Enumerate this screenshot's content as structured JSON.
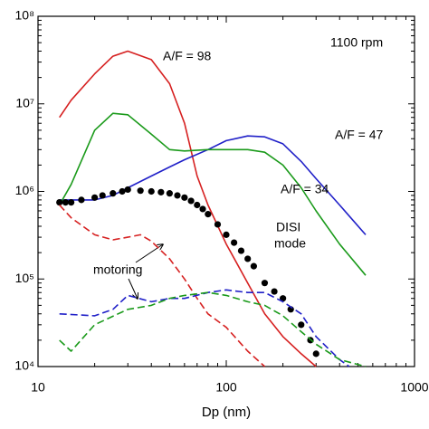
{
  "chart_data": {
    "type": "line",
    "x_label": "Dp (nm)",
    "xlim": [
      10,
      1000
    ],
    "xticks": [
      10,
      100,
      1000
    ],
    "ylim": [
      10000,
      100000000
    ],
    "yticks": [
      {
        "value": 10000,
        "label": "10⁴"
      },
      {
        "value": 100000,
        "label": "10⁵"
      },
      {
        "value": 1000000,
        "label": "10⁶"
      },
      {
        "value": 10000000,
        "label": "10⁷"
      },
      {
        "value": 100000000,
        "label": "10⁸"
      }
    ],
    "xscale": "log",
    "yscale": "log",
    "annotations": [
      "1100 rpm",
      "DISI",
      "mode",
      "motoring"
    ],
    "series": [
      {
        "name": "A/F = 98",
        "color": "#d62020",
        "style": "solid",
        "x": [
          13,
          15,
          20,
          25,
          30,
          40,
          50,
          60,
          70,
          80,
          100,
          130,
          160,
          200,
          250,
          300
        ],
        "values": [
          7000000,
          11000000,
          22000000,
          35000000,
          40000000,
          32000000,
          17000000,
          6000000,
          1500000,
          700000,
          250000,
          90000,
          40000,
          22000,
          14000,
          10000
        ]
      },
      {
        "name": "A/F = 47",
        "color": "#2020c8",
        "style": "solid",
        "x": [
          13,
          20,
          25,
          30,
          40,
          50,
          60,
          80,
          100,
          130,
          160,
          200,
          250,
          300,
          400,
          550
        ],
        "values": [
          800000,
          800000,
          900000,
          1100000,
          1500000,
          1900000,
          2300000,
          3000000,
          3800000,
          4300000,
          4200000,
          3500000,
          2200000,
          1400000,
          700000,
          320000
        ]
      },
      {
        "name": "A/F = 34",
        "color": "#1a9a1a",
        "style": "solid",
        "x": [
          13,
          15,
          20,
          25,
          30,
          40,
          50,
          60,
          80,
          100,
          130,
          160,
          200,
          250,
          300,
          400,
          550
        ],
        "values": [
          700000,
          1200000,
          5000000,
          7800000,
          7500000,
          4500000,
          3000000,
          2900000,
          3000000,
          3000000,
          3000000,
          2800000,
          2000000,
          1100000,
          600000,
          250000,
          110000
        ]
      },
      {
        "color": "#000000",
        "style": "dots",
        "x": [
          13,
          14,
          15,
          17,
          20,
          22,
          25,
          28,
          30,
          35,
          40,
          45,
          50,
          55,
          60,
          65,
          70,
          75,
          80,
          90,
          100,
          110,
          120,
          130,
          140,
          160,
          180,
          200,
          220,
          250,
          280,
          300
        ],
        "values": [
          750000,
          750000,
          750000,
          800000,
          850000,
          900000,
          950000,
          1000000,
          1050000,
          1020000,
          1000000,
          980000,
          950000,
          900000,
          850000,
          780000,
          700000,
          630000,
          550000,
          420000,
          320000,
          260000,
          210000,
          170000,
          140000,
          90000,
          72000,
          60000,
          45000,
          30000,
          20000,
          14000
        ]
      },
      {
        "color": "#d62020",
        "style": "dashed",
        "x": [
          13,
          15,
          20,
          25,
          30,
          35,
          40,
          50,
          60,
          70,
          80,
          100,
          130,
          160
        ],
        "values": [
          700000,
          500000,
          320000,
          280000,
          300000,
          320000,
          270000,
          170000,
          100000,
          60000,
          40000,
          28000,
          15000,
          10000
        ]
      },
      {
        "color": "#2020c8",
        "style": "dashed",
        "x": [
          13,
          20,
          25,
          30,
          40,
          50,
          60,
          80,
          100,
          130,
          160,
          200,
          250,
          300,
          400,
          450
        ],
        "values": [
          40000,
          38000,
          45000,
          65000,
          55000,
          60000,
          60000,
          70000,
          75000,
          70000,
          70000,
          55000,
          40000,
          22000,
          12000,
          10000
        ]
      },
      {
        "color": "#1a9a1a",
        "style": "dashed",
        "x": [
          13,
          15,
          20,
          30,
          40,
          50,
          60,
          80,
          100,
          130,
          160,
          200,
          250,
          300,
          400,
          550
        ],
        "values": [
          20000,
          15000,
          30000,
          45000,
          50000,
          60000,
          65000,
          70000,
          65000,
          55000,
          50000,
          38000,
          25000,
          18000,
          12000,
          10000
        ]
      }
    ]
  }
}
